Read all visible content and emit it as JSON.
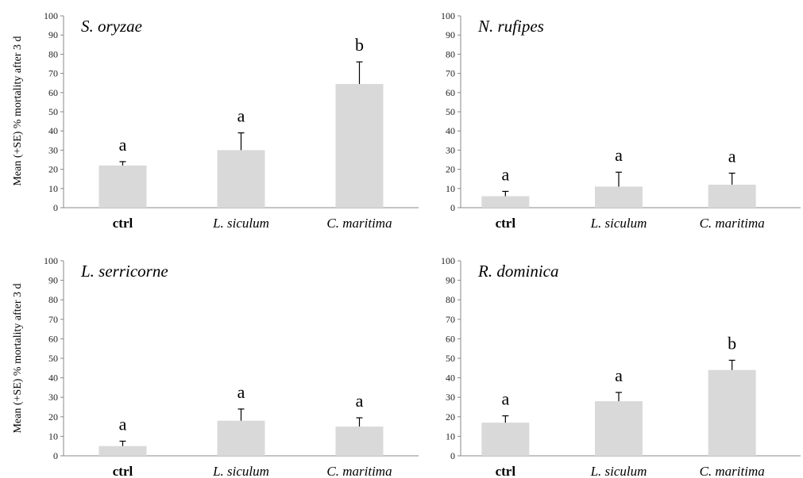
{
  "figure": {
    "ylabel": "Mean (+SE) % mortality after 3 d"
  },
  "chart_data": [
    {
      "type": "bar",
      "title": "S. oryzae",
      "categories": [
        "ctrl",
        "L. siculum",
        "C. maritima"
      ],
      "values": [
        22,
        30,
        64.5
      ],
      "errors": [
        2,
        9,
        11.5
      ],
      "letters": [
        "a",
        "a",
        "b"
      ],
      "ylabel": "Mean (+SE) % mortality after 3 d",
      "ylim": [
        0,
        100
      ],
      "yticks": [
        0,
        10,
        20,
        30,
        40,
        50,
        60,
        70,
        80,
        90,
        100
      ],
      "grid": false,
      "bar_color": "#d9d9d9"
    },
    {
      "type": "bar",
      "title": "N. rufipes",
      "categories": [
        "ctrl",
        "L. siculum",
        "C. maritima"
      ],
      "values": [
        6,
        11,
        12
      ],
      "errors": [
        2.5,
        7.5,
        6
      ],
      "letters": [
        "a",
        "a",
        "a"
      ],
      "ylabel": "",
      "ylim": [
        0,
        100
      ],
      "yticks": [
        0,
        10,
        20,
        30,
        40,
        50,
        60,
        70,
        80,
        90,
        100
      ],
      "grid": false,
      "bar_color": "#d9d9d9"
    },
    {
      "type": "bar",
      "title": "L. serricorne",
      "categories": [
        "ctrl",
        "L. siculum",
        "C. maritima"
      ],
      "values": [
        5,
        18,
        15
      ],
      "errors": [
        2.5,
        6,
        4.5
      ],
      "letters": [
        "a",
        "a",
        "a"
      ],
      "ylabel": "Mean (+SE) % mortality after 3 d",
      "ylim": [
        0,
        100
      ],
      "yticks": [
        0,
        10,
        20,
        30,
        40,
        50,
        60,
        70,
        80,
        90,
        100
      ],
      "grid": false,
      "bar_color": "#d9d9d9"
    },
    {
      "type": "bar",
      "title": "R. dominica",
      "categories": [
        "ctrl",
        "L. siculum",
        "C. maritima"
      ],
      "values": [
        17,
        28,
        44
      ],
      "errors": [
        3.5,
        4.5,
        5
      ],
      "letters": [
        "a",
        "a",
        "b"
      ],
      "ylabel": "",
      "ylim": [
        0,
        100
      ],
      "yticks": [
        0,
        10,
        20,
        30,
        40,
        50,
        60,
        70,
        80,
        90,
        100
      ],
      "grid": false,
      "bar_color": "#d9d9d9"
    }
  ]
}
